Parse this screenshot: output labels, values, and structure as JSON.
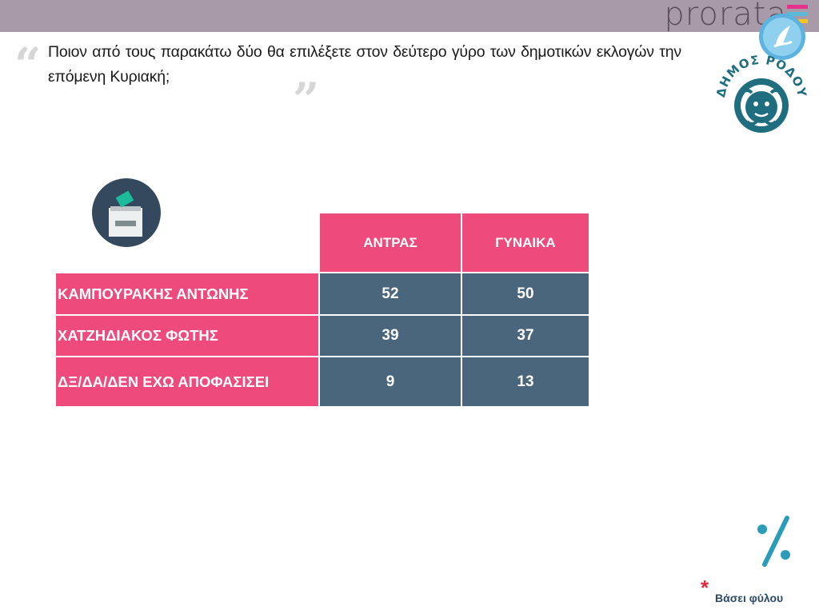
{
  "header": {
    "brand": "prorata",
    "brand_colors": [
      "#e8318a",
      "#5bbbd7",
      "#f5c61a"
    ],
    "bar_color": "#a89aa8"
  },
  "question": {
    "text": "Ποιον από τους παρακάτω δύο θα επιλέξετε στον δεύτερο γύρο των δημοτικών εκλογών την επόμενη Κυριακή;",
    "open_quote": "“",
    "close_quote": "”"
  },
  "seal": {
    "text": "ΔΗΜΟΣ ΡΟΔΟΥ",
    "color": "#1e6e80"
  },
  "icons": {
    "ballot": "ballot-box-icon",
    "percent": "percent-icon",
    "logo": "round-logo-icon"
  },
  "chart_data": {
    "type": "table",
    "columns": [
      "ΑΝΤΡΑΣ",
      "ΓΥΝΑΙΚΑ"
    ],
    "rows": [
      {
        "label": "ΚΑΜΠΟΥΡΑΚΗΣ ΑΝΤΩΝΗΣ",
        "values": [
          52,
          50
        ]
      },
      {
        "label": "ΧΑΤΖΗΔΙΑΚΟΣ ΦΩΤΗΣ",
        "values": [
          39,
          37
        ]
      },
      {
        "label": "ΔΞ/ΔΑ/ΔΕΝ ΕΧΩ ΑΠΟΦΑΣΙΣΕΙ",
        "values": [
          9,
          13
        ]
      }
    ],
    "header_color": "#ee4a7b",
    "cell_color": "#4a667c"
  },
  "footnote": {
    "marker": "*",
    "text": "Βάσει φύλου"
  }
}
